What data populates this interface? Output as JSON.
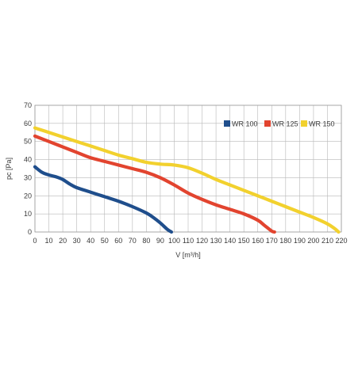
{
  "chart_data": {
    "type": "line",
    "xlabel": "V [m³/h]",
    "ylabel": "pc [Pa]",
    "xlim": [
      0,
      220
    ],
    "ylim": [
      0,
      70
    ],
    "xticks": [
      "0",
      "10",
      "20",
      "30",
      "40",
      "50",
      "60",
      "70",
      "80",
      "90",
      "100",
      "110",
      "120",
      "130",
      "140",
      "150",
      "160",
      "170",
      "180",
      "190",
      "200",
      "210",
      "220"
    ],
    "yticks": [
      "0",
      "10",
      "20",
      "30",
      "40",
      "50",
      "60",
      "70"
    ],
    "grid": true,
    "legend_position": "top-right",
    "series": [
      {
        "name": "WR 100",
        "color": "#1f4e8c",
        "points": [
          [
            0,
            36
          ],
          [
            5,
            33
          ],
          [
            10,
            31.5
          ],
          [
            15,
            30.5
          ],
          [
            20,
            29
          ],
          [
            25,
            26.5
          ],
          [
            30,
            24.5
          ],
          [
            40,
            22
          ],
          [
            50,
            19.5
          ],
          [
            60,
            17
          ],
          [
            70,
            14
          ],
          [
            80,
            10.5
          ],
          [
            85,
            8
          ],
          [
            90,
            5
          ],
          [
            95,
            1.5
          ],
          [
            98,
            0
          ]
        ]
      },
      {
        "name": "WR 125",
        "color": "#e2442f",
        "points": [
          [
            0,
            53
          ],
          [
            10,
            50
          ],
          [
            20,
            47
          ],
          [
            30,
            44
          ],
          [
            40,
            41
          ],
          [
            50,
            39
          ],
          [
            60,
            37
          ],
          [
            70,
            35
          ],
          [
            80,
            33
          ],
          [
            90,
            30
          ],
          [
            100,
            26
          ],
          [
            110,
            21.5
          ],
          [
            120,
            18
          ],
          [
            130,
            15
          ],
          [
            140,
            12.5
          ],
          [
            150,
            10
          ],
          [
            160,
            6.5
          ],
          [
            165,
            3.5
          ],
          [
            170,
            0.5
          ],
          [
            172,
            0
          ]
        ]
      },
      {
        "name": "WR 150",
        "color": "#f2d12e",
        "points": [
          [
            0,
            57.5
          ],
          [
            10,
            55
          ],
          [
            20,
            52.5
          ],
          [
            30,
            50
          ],
          [
            40,
            47.5
          ],
          [
            50,
            45
          ],
          [
            60,
            42.5
          ],
          [
            70,
            40.5
          ],
          [
            80,
            38.5
          ],
          [
            90,
            37.5
          ],
          [
            100,
            37
          ],
          [
            110,
            35.5
          ],
          [
            120,
            32.5
          ],
          [
            130,
            29
          ],
          [
            140,
            26
          ],
          [
            150,
            23
          ],
          [
            160,
            20
          ],
          [
            170,
            17
          ],
          [
            180,
            14
          ],
          [
            190,
            11
          ],
          [
            200,
            8
          ],
          [
            210,
            4.5
          ],
          [
            215,
            2
          ],
          [
            218,
            0
          ]
        ]
      }
    ]
  }
}
